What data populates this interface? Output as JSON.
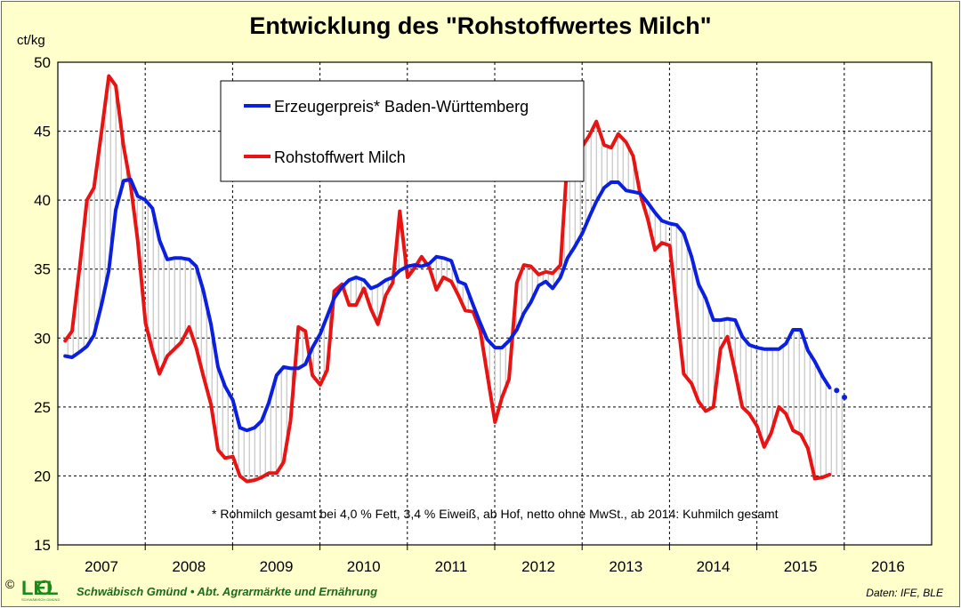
{
  "header": {
    "title": "Entwicklung des \"Rohstoffwertes Milch\""
  },
  "colors": {
    "background": "#ffffcc",
    "blue_series": "#0a1fe0",
    "red_series": "#e81414",
    "hatch": "#9a9a9a",
    "logo_green": "#1a8a1a"
  },
  "footnote": "* Rohmilch gesamt bei 4,0 % Fett, 3,4 % Eiweiß, ab Hof, netto ohne MwSt., ab 2014: Kuhmilch gesamt",
  "footer": {
    "copyright": "©",
    "logo": "LEL",
    "logo_sub": "SCHWÄBISCH GMÜND",
    "org": "Schwäbisch Gmünd • Abt. Agrarmärkte und Ernährung",
    "source": "Daten: IFE, BLE"
  },
  "chart_data": {
    "type": "line",
    "title": "Entwicklung des \"Rohstoffwertes Milch\"",
    "ylabel": "ct/kg",
    "xlabel": "",
    "ylim": [
      15,
      50
    ],
    "yticks": [
      "15",
      "20",
      "25",
      "30",
      "35",
      "40",
      "45",
      "50"
    ],
    "categories": [
      "2007",
      "2008",
      "2009",
      "2010",
      "2011",
      "2012",
      "2013",
      "2014",
      "2015",
      "2016"
    ],
    "grid": true,
    "legend_position": "top-left",
    "series": [
      {
        "name": "Erzeugerpreis* Baden-Württemberg",
        "color": "#0a1fe0",
        "x": [
          2007.0,
          2007.08,
          2007.17,
          2007.25,
          2007.33,
          2007.42,
          2007.5,
          2007.58,
          2007.67,
          2007.75,
          2007.83,
          2007.92,
          2008.0,
          2008.08,
          2008.17,
          2008.25,
          2008.33,
          2008.42,
          2008.5,
          2008.58,
          2008.67,
          2008.75,
          2008.83,
          2008.92,
          2009.0,
          2009.08,
          2009.17,
          2009.25,
          2009.33,
          2009.42,
          2009.5,
          2009.58,
          2009.67,
          2009.75,
          2009.83,
          2009.92,
          2010.0,
          2010.08,
          2010.17,
          2010.25,
          2010.33,
          2010.42,
          2010.5,
          2010.58,
          2010.67,
          2010.75,
          2010.83,
          2010.92,
          2011.0,
          2011.08,
          2011.17,
          2011.25,
          2011.33,
          2011.42,
          2011.5,
          2011.58,
          2011.67,
          2011.75,
          2011.83,
          2011.92,
          2012.0,
          2012.08,
          2012.17,
          2012.25,
          2012.33,
          2012.42,
          2012.5,
          2012.58,
          2012.67,
          2012.75,
          2012.83,
          2012.92,
          2013.0,
          2013.08,
          2013.17,
          2013.25,
          2013.33,
          2013.42,
          2013.5,
          2013.58,
          2013.67,
          2013.75,
          2013.83,
          2013.92,
          2014.0,
          2014.08,
          2014.17,
          2014.25,
          2014.33,
          2014.42,
          2014.5,
          2014.58,
          2014.67,
          2014.75,
          2014.83,
          2014.92,
          2015.0,
          2015.08,
          2015.17,
          2015.25,
          2015.33,
          2015.42,
          2015.5,
          2015.58,
          2015.67,
          2015.75
        ],
        "values": [
          28.7,
          28.6,
          29.0,
          29.4,
          30.2,
          32.5,
          34.9,
          39.3,
          41.4,
          41.5,
          40.3,
          40.0,
          39.4,
          37.1,
          35.7,
          35.8,
          35.8,
          35.7,
          35.2,
          33.5,
          31.0,
          27.9,
          26.5,
          25.5,
          23.5,
          23.3,
          23.5,
          24.0,
          25.3,
          27.3,
          27.9,
          27.8,
          27.8,
          28.1,
          29.3,
          30.3,
          31.6,
          32.9,
          33.7,
          34.2,
          34.4,
          34.2,
          33.6,
          33.8,
          34.2,
          34.4,
          34.9,
          35.2,
          35.3,
          35.2,
          35.4,
          35.9,
          35.8,
          35.6,
          34.1,
          33.9,
          32.4,
          31.1,
          29.9,
          29.3,
          29.3,
          29.8,
          30.6,
          31.8,
          32.6,
          33.8,
          34.1,
          33.6,
          34.4,
          35.8,
          36.6,
          37.6,
          38.8,
          39.9,
          40.9,
          41.3,
          41.3,
          40.7,
          40.6,
          40.5,
          39.8,
          39.1,
          38.5,
          38.3,
          38.2,
          37.6,
          35.9,
          33.9,
          32.9,
          31.3,
          31.3,
          31.4,
          31.3,
          30.1,
          29.5,
          29.3,
          29.2,
          29.2,
          29.2,
          29.6,
          30.6,
          30.6,
          29.1,
          28.3,
          27.2,
          26.4
        ]
      },
      {
        "name": "Rohstoffwert Milch",
        "color": "#e81414",
        "x": [
          2007.0,
          2007.08,
          2007.17,
          2007.25,
          2007.33,
          2007.42,
          2007.5,
          2007.58,
          2007.67,
          2007.75,
          2007.83,
          2007.92,
          2008.0,
          2008.08,
          2008.17,
          2008.25,
          2008.33,
          2008.42,
          2008.5,
          2008.58,
          2008.67,
          2008.75,
          2008.83,
          2008.92,
          2009.0,
          2009.08,
          2009.17,
          2009.25,
          2009.33,
          2009.42,
          2009.5,
          2009.58,
          2009.67,
          2009.75,
          2009.83,
          2009.92,
          2010.0,
          2010.08,
          2010.17,
          2010.25,
          2010.33,
          2010.42,
          2010.5,
          2010.58,
          2010.67,
          2010.75,
          2010.83,
          2010.92,
          2011.0,
          2011.08,
          2011.17,
          2011.25,
          2011.33,
          2011.42,
          2011.5,
          2011.58,
          2011.67,
          2011.75,
          2011.83,
          2011.92,
          2012.0,
          2012.08,
          2012.17,
          2012.25,
          2012.33,
          2012.42,
          2012.5,
          2012.58,
          2012.67,
          2012.75,
          2012.83,
          2012.92,
          2013.0,
          2013.08,
          2013.17,
          2013.25,
          2013.33,
          2013.42,
          2013.5,
          2013.58,
          2013.67,
          2013.75,
          2013.83,
          2013.92,
          2014.0,
          2014.08,
          2014.17,
          2014.25,
          2014.33,
          2014.42,
          2014.5,
          2014.58,
          2014.67,
          2014.75,
          2014.83,
          2014.92,
          2015.0,
          2015.08,
          2015.17,
          2015.25,
          2015.33,
          2015.42,
          2015.5,
          2015.58,
          2015.67,
          2015.75
        ],
        "values": [
          29.8,
          30.5,
          35.3,
          40.0,
          40.9,
          45.1,
          49.0,
          48.3,
          43.9,
          41.1,
          37.1,
          31.1,
          29.1,
          27.4,
          28.7,
          29.2,
          29.7,
          30.8,
          29.3,
          27.3,
          25.2,
          21.9,
          21.3,
          21.4,
          20.0,
          19.6,
          19.7,
          19.9,
          20.2,
          20.2,
          21.0,
          24.0,
          30.8,
          30.5,
          27.3,
          26.6,
          27.7,
          33.4,
          33.9,
          32.4,
          32.4,
          33.6,
          32.1,
          31.0,
          33.1,
          34.0,
          39.2,
          34.4,
          35.1,
          35.9,
          35.1,
          33.5,
          34.4,
          34.1,
          33.1,
          32.0,
          31.9,
          30.6,
          27.4,
          23.9,
          25.7,
          27.0,
          34.0,
          35.3,
          35.2,
          34.6,
          34.8,
          34.7,
          35.3,
          43.1,
          43.3,
          43.9,
          44.7,
          45.7,
          44.0,
          43.8,
          44.8,
          44.2,
          43.2,
          40.5,
          38.6,
          36.4,
          36.9,
          36.7,
          32.0,
          27.4,
          26.7,
          25.4,
          24.7,
          25.0,
          29.2,
          30.1,
          27.5,
          25.0,
          24.5,
          23.6,
          22.1,
          23.1,
          25.0,
          24.5,
          23.3,
          23.0,
          22.0,
          19.8,
          19.9,
          20.1
        ]
      }
    ],
    "projected_points": {
      "series": "Erzeugerpreis* Baden-Württemberg",
      "x": [
        2015.83,
        2015.92
      ],
      "values": [
        26.2,
        25.7
      ]
    }
  }
}
